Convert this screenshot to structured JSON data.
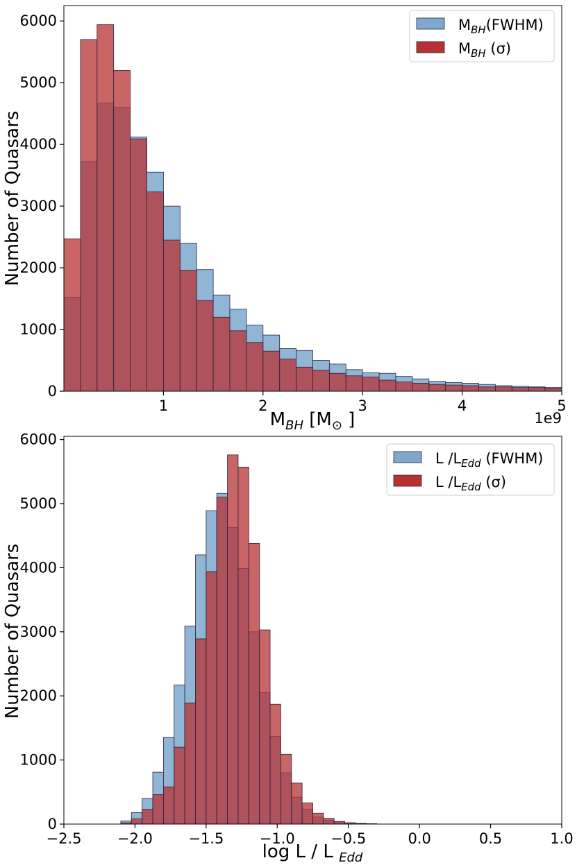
{
  "colors": {
    "series1": "#7ea8ce",
    "series2": "#b83132",
    "edge": "#2a2440"
  },
  "chart_data": [
    {
      "type": "bar",
      "title": "",
      "xlabel_main": "M",
      "xlabel_sub": "BH",
      "xlabel_tail": " [M",
      "xlabel_sun": "⊙",
      "xlabel_close": " ]",
      "ylabel": "Number of Quasars",
      "offset_text": "1e9",
      "xlim": [
        0.0,
        5.0
      ],
      "ylim": [
        0,
        6250
      ],
      "xticks": [
        1,
        2,
        3,
        4,
        5
      ],
      "xtick_labels": [
        "1",
        "2",
        "3",
        "4",
        "5"
      ],
      "yticks": [
        0,
        1000,
        2000,
        3000,
        4000,
        5000,
        6000
      ],
      "ytick_labels": [
        "0",
        "1000",
        "2000",
        "3000",
        "4000",
        "5000",
        "6000"
      ],
      "bin_edges": [
        0.0,
        0.1667,
        0.3333,
        0.5,
        0.6667,
        0.8333,
        1.0,
        1.1667,
        1.3333,
        1.5,
        1.6667,
        1.8333,
        2.0,
        2.1667,
        2.3333,
        2.5,
        2.6667,
        2.8333,
        3.0,
        3.1667,
        3.3333,
        3.5,
        3.6667,
        3.8333,
        4.0,
        4.1667,
        4.3333,
        4.5,
        4.6667,
        4.8333,
        5.0
      ],
      "legend": {
        "position": "top-right",
        "entries": [
          {
            "main": "M",
            "sub": "BH",
            "tail": "(FWHM)"
          },
          {
            "main": "M",
            "sub": "BH",
            "tail": " (σ)"
          }
        ]
      },
      "series": [
        {
          "name": "M_BH(FWHM)",
          "values": [
            1520,
            3720,
            4670,
            4600,
            4120,
            3550,
            3000,
            2400,
            1970,
            1560,
            1330,
            1070,
            910,
            690,
            660,
            500,
            440,
            350,
            300,
            290,
            240,
            200,
            160,
            140,
            130,
            110,
            90,
            80,
            70,
            60
          ]
        },
        {
          "name": "M_BH (σ)",
          "values": [
            2470,
            5700,
            5940,
            5200,
            4090,
            3230,
            2450,
            1960,
            1470,
            1200,
            980,
            790,
            650,
            520,
            390,
            340,
            290,
            250,
            230,
            180,
            150,
            130,
            110,
            100,
            90,
            70,
            70,
            60,
            60,
            50
          ]
        }
      ]
    },
    {
      "type": "bar",
      "title": "",
      "xlabel_main": "log L / L ",
      "xlabel_sub": "Edd",
      "ylabel": "Number of Quasars",
      "xlim": [
        -2.5,
        1.0
      ],
      "ylim": [
        0,
        6050
      ],
      "xticks": [
        -2.5,
        -2.0,
        -1.5,
        -1.0,
        -0.5,
        0.0,
        0.5,
        1.0
      ],
      "xtick_labels": [
        "−2.5",
        "−2.0",
        "−1.5",
        "−1.0",
        "−0.5",
        "0.0",
        "0.5",
        "1.0"
      ],
      "yticks": [
        0,
        1000,
        2000,
        3000,
        4000,
        5000,
        6000
      ],
      "ytick_labels": [
        "0",
        "1000",
        "2000",
        "3000",
        "4000",
        "5000",
        "6000"
      ],
      "bin_edges": [
        -2.1,
        -2.025,
        -1.95,
        -1.875,
        -1.8,
        -1.725,
        -1.65,
        -1.575,
        -1.5,
        -1.425,
        -1.35,
        -1.275,
        -1.2,
        -1.125,
        -1.05,
        -0.975,
        -0.9,
        -0.825,
        -0.75,
        -0.675,
        -0.6,
        -0.525,
        -0.45,
        -0.375,
        -0.3,
        -0.225,
        -0.15,
        -0.075,
        0.0,
        0.075
      ],
      "legend": {
        "position": "top-right",
        "entries": [
          {
            "main": "L /L",
            "sub": "Edd",
            "tail": " (FWHM)"
          },
          {
            "main": "L /L",
            "sub": "Edd",
            "tail": " (σ)"
          }
        ]
      },
      "series": [
        {
          "name": "L/L_Edd (FWHM)",
          "values": [
            50,
            180,
            400,
            810,
            1350,
            2170,
            3090,
            4200,
            4890,
            5160,
            4630,
            3990,
            3000,
            2050,
            1370,
            800,
            420,
            230,
            110,
            60,
            40,
            20,
            10,
            5,
            0,
            0,
            0,
            0,
            0
          ]
        },
        {
          "name": "L/L_Edd (σ)",
          "values": [
            20,
            80,
            230,
            460,
            580,
            1200,
            1890,
            2890,
            3940,
            5100,
            5760,
            5570,
            4380,
            3030,
            1870,
            1090,
            640,
            330,
            170,
            90,
            40,
            20,
            10,
            5,
            0,
            0,
            0,
            0,
            0
          ]
        }
      ]
    }
  ]
}
